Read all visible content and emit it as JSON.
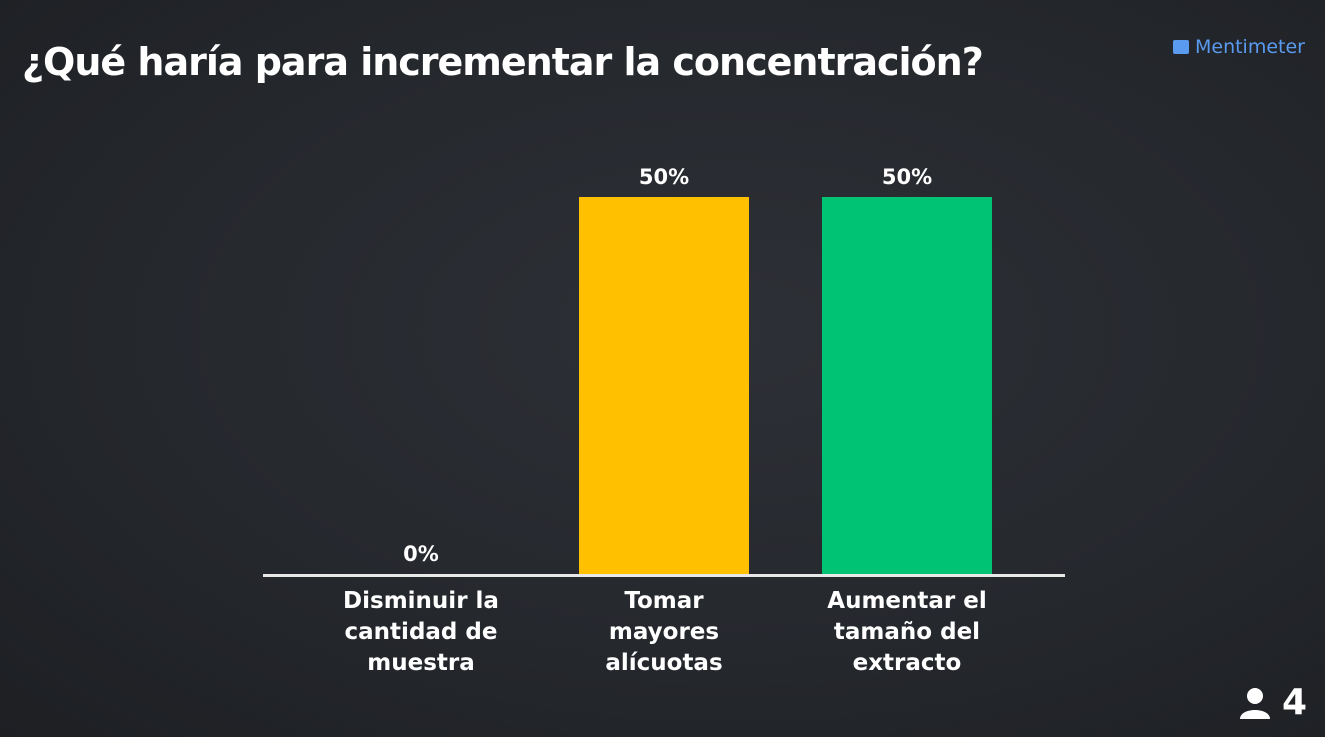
{
  "brand": "Mentimeter",
  "participants": 4,
  "chart_data": {
    "type": "bar",
    "title": "¿Qué haría para incrementar la concentración?",
    "categories": [
      "Disminuir la cantidad de muestra",
      "Tomar mayores alícuotas",
      "Aumentar el tamaño del extracto"
    ],
    "values": [
      0,
      50,
      50
    ],
    "value_labels": [
      "0%",
      "50%",
      "50%"
    ],
    "colors": [
      null,
      "#ffc000",
      "#00c373"
    ]
  }
}
